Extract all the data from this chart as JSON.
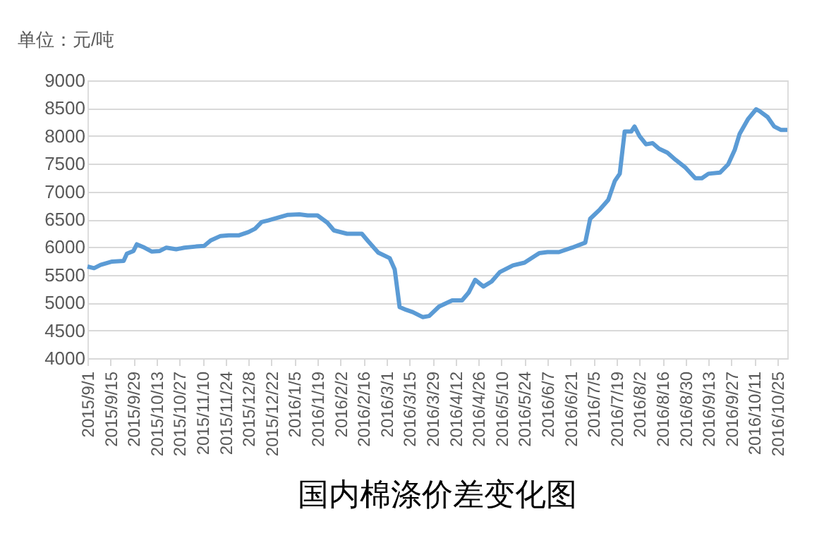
{
  "chart_data": {
    "type": "line",
    "title": "国内棉涤价差变化图",
    "ylabel": "单位：元/吨",
    "x": [
      "2015-09-01",
      "2015-09-05",
      "2015-09-09",
      "2015-09-16",
      "2015-09-23",
      "2015-09-25",
      "2015-09-29",
      "2015-10-01",
      "2015-10-05",
      "2015-10-10",
      "2015-10-15",
      "2015-10-19",
      "2015-10-25",
      "2015-10-30",
      "2015-11-06",
      "2015-11-11",
      "2015-11-15",
      "2015-11-21",
      "2015-11-26",
      "2015-12-02",
      "2015-12-08",
      "2015-12-12",
      "2015-12-16",
      "2015-12-20",
      "2015-12-26",
      "2016-01-01",
      "2016-01-08",
      "2016-01-13",
      "2016-01-19",
      "2016-01-25",
      "2016-01-29",
      "2016-02-06",
      "2016-02-15",
      "2016-02-19",
      "2016-02-25",
      "2016-03-03",
      "2016-03-06",
      "2016-03-09",
      "2016-03-13",
      "2016-03-17",
      "2016-03-23",
      "2016-03-27",
      "2016-04-02",
      "2016-04-10",
      "2016-04-16",
      "2016-04-20",
      "2016-04-24",
      "2016-04-29",
      "2016-05-04",
      "2016-05-09",
      "2016-05-17",
      "2016-05-24",
      "2016-06-02",
      "2016-06-07",
      "2016-06-14",
      "2016-06-22",
      "2016-06-30",
      "2016-07-03",
      "2016-07-09",
      "2016-07-14",
      "2016-07-18",
      "2016-07-21",
      "2016-07-24",
      "2016-07-28",
      "2016-07-30",
      "2016-08-02",
      "2016-08-06",
      "2016-08-10",
      "2016-08-14",
      "2016-08-19",
      "2016-08-24",
      "2016-08-30",
      "2016-09-05",
      "2016-09-09",
      "2016-09-13",
      "2016-09-20",
      "2016-09-25",
      "2016-09-29",
      "2016-10-02",
      "2016-10-07",
      "2016-10-12",
      "2016-10-14",
      "2016-10-19",
      "2016-10-23",
      "2016-10-27",
      "2016-10-31"
    ],
    "series": [
      {
        "color": "#5b9bd5",
        "values": [
          5650,
          5620,
          5680,
          5740,
          5750,
          5880,
          5930,
          6050,
          6000,
          5920,
          5930,
          5990,
          5960,
          5990,
          6010,
          6020,
          6120,
          6200,
          6210,
          6210,
          6270,
          6330,
          6450,
          6480,
          6530,
          6580,
          6590,
          6570,
          6570,
          6440,
          6300,
          6240,
          6240,
          6100,
          5900,
          5800,
          5600,
          4920,
          4870,
          4830,
          4740,
          4760,
          4930,
          5040,
          5040,
          5180,
          5410,
          5290,
          5380,
          5550,
          5670,
          5720,
          5890,
          5910,
          5910,
          5990,
          6080,
          6510,
          6680,
          6850,
          7190,
          7320,
          8080,
          8080,
          8170,
          8000,
          7850,
          7870,
          7770,
          7700,
          7570,
          7430,
          7240,
          7240,
          7320,
          7340,
          7490,
          7750,
          8040,
          8300,
          8480,
          8450,
          8340,
          8170,
          8110,
          8110
        ]
      }
    ],
    "xlim": [
      "2015-09-01",
      "2016-10-31"
    ],
    "xticks": [
      {
        "value": "2015-09-01",
        "label": "2015/9/1"
      },
      {
        "value": "2015-09-15",
        "label": "2015/9/15"
      },
      {
        "value": "2015-09-29",
        "label": "2015/9/29"
      },
      {
        "value": "2015-10-13",
        "label": "2015/10/13"
      },
      {
        "value": "2015-10-27",
        "label": "2015/10/27"
      },
      {
        "value": "2015-11-10",
        "label": "2015/11/10"
      },
      {
        "value": "2015-11-24",
        "label": "2015/11/24"
      },
      {
        "value": "2015-12-08",
        "label": "2015/12/8"
      },
      {
        "value": "2015-12-22",
        "label": "2015/12/22"
      },
      {
        "value": "2016-01-05",
        "label": "2016/1/5"
      },
      {
        "value": "2016-01-19",
        "label": "2016/1/19"
      },
      {
        "value": "2016-02-02",
        "label": "2016/2/2"
      },
      {
        "value": "2016-02-16",
        "label": "2016/2/16"
      },
      {
        "value": "2016-03-01",
        "label": "2016/3/1"
      },
      {
        "value": "2016-03-15",
        "label": "2016/3/15"
      },
      {
        "value": "2016-03-29",
        "label": "2016/3/29"
      },
      {
        "value": "2016-04-12",
        "label": "2016/4/12"
      },
      {
        "value": "2016-04-26",
        "label": "2016/4/26"
      },
      {
        "value": "2016-05-10",
        "label": "2016/5/10"
      },
      {
        "value": "2016-05-24",
        "label": "2016/5/24"
      },
      {
        "value": "2016-06-07",
        "label": "2016/6/7"
      },
      {
        "value": "2016-06-21",
        "label": "2016/6/21"
      },
      {
        "value": "2016-07-05",
        "label": "2016/7/5"
      },
      {
        "value": "2016-07-19",
        "label": "2016/7/19"
      },
      {
        "value": "2016-08-02",
        "label": "2016/8/2"
      },
      {
        "value": "2016-08-16",
        "label": "2016/8/16"
      },
      {
        "value": "2016-08-30",
        "label": "2016/8/30"
      },
      {
        "value": "2016-09-13",
        "label": "2016/9/13"
      },
      {
        "value": "2016-09-27",
        "label": "2016/9/27"
      },
      {
        "value": "2016-10-11",
        "label": "2016/10/11"
      },
      {
        "value": "2016-10-25",
        "label": "2016/10/25"
      }
    ],
    "ylim": [
      4000,
      9000
    ],
    "yticks": [
      4000,
      4500,
      5000,
      5500,
      6000,
      6500,
      7000,
      7500,
      8000,
      8500,
      9000
    ],
    "grid": "y",
    "marker": "none",
    "line_style": "solid"
  }
}
